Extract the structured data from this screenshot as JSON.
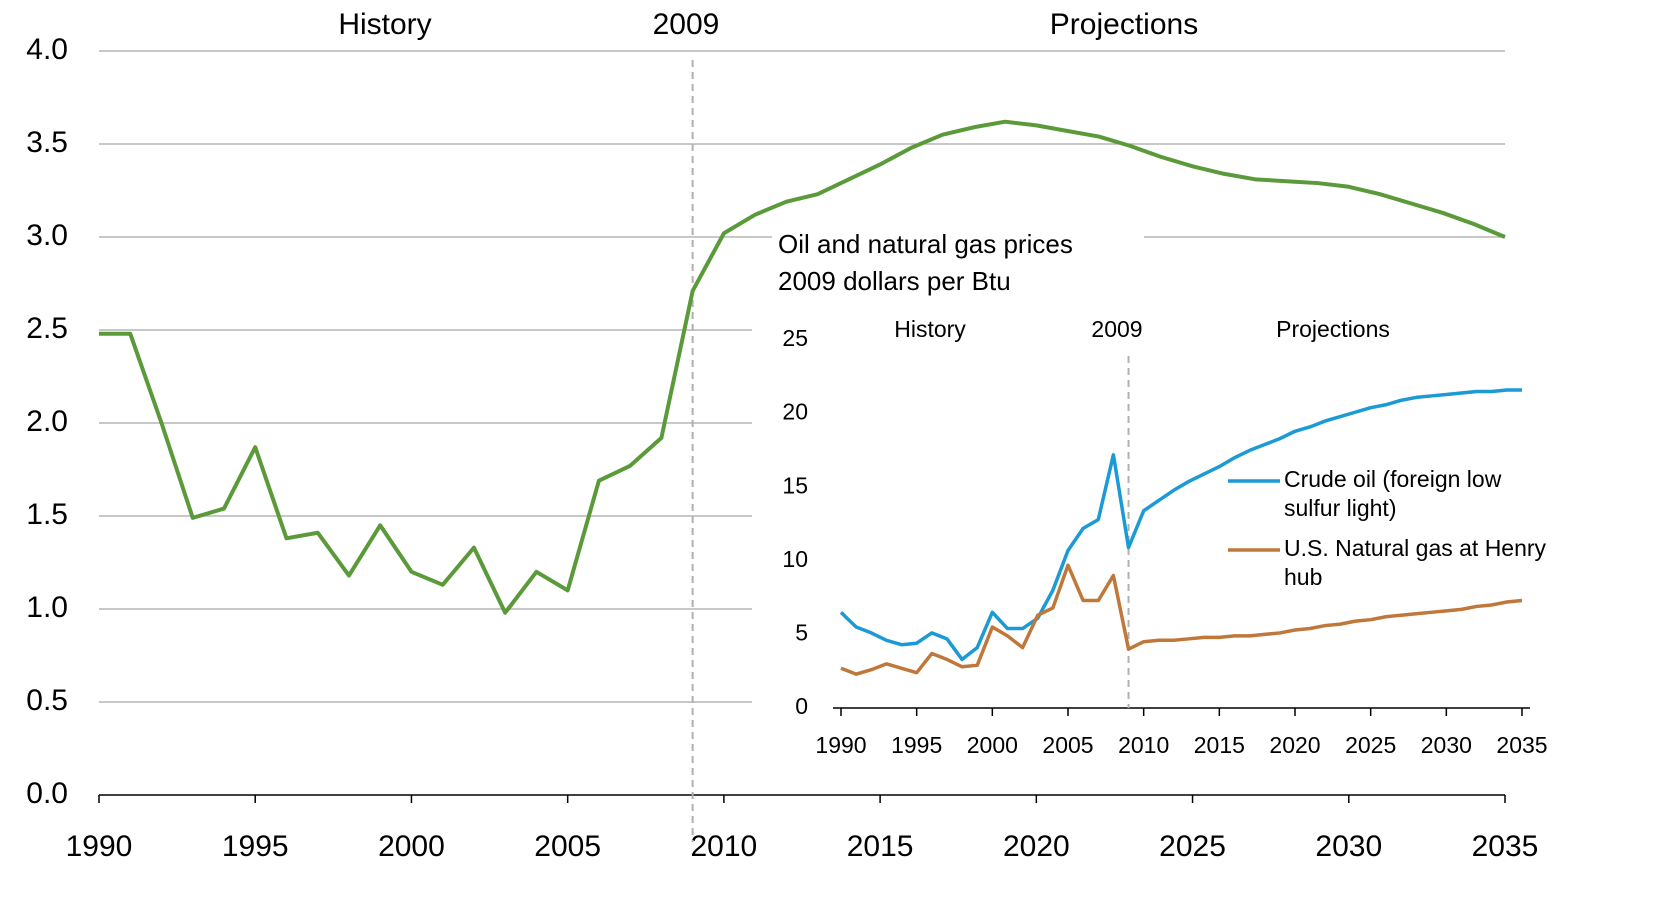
{
  "chart_data": [
    {
      "type": "line",
      "annotations": [
        "History",
        "2009",
        "Projections"
      ],
      "divider": {
        "value": 2009,
        "label": "2009"
      },
      "xlim": [
        1990,
        2035
      ],
      "xticks": [
        1990,
        1995,
        2000,
        2005,
        2010,
        2015,
        2020,
        2025,
        2030,
        2035
      ],
      "ylim": [
        0,
        4
      ],
      "yticks": [
        {
          "value": 0,
          "label": "0.0"
        },
        0.5,
        {
          "value": 1,
          "label": "1.0"
        },
        1.5,
        {
          "value": 2,
          "label": "2.0"
        },
        2.5,
        {
          "value": 3,
          "label": "3.0"
        },
        3.5,
        {
          "value": 4,
          "label": "4.0"
        }
      ],
      "grid": true,
      "x": [
        1990,
        1991,
        1992,
        1993,
        1994,
        1995,
        1996,
        1997,
        1998,
        1999,
        2000,
        2001,
        2002,
        2003,
        2004,
        2005,
        2006,
        2007,
        2008,
        2009,
        2010,
        2011,
        2012,
        2013,
        2014,
        2015,
        2016,
        2017,
        2018,
        2019,
        2020,
        2021,
        2022,
        2023,
        2024,
        2025,
        2026,
        2027,
        2028,
        2029,
        2030,
        2031,
        2032,
        2033,
        2034,
        2035
      ],
      "series": [
        {
          "color": "#5b9a3a",
          "values": [
            2.48,
            2.48,
            2.0,
            1.49,
            1.54,
            1.87,
            1.38,
            1.41,
            1.18,
            1.45,
            1.2,
            1.13,
            1.33,
            0.98,
            1.2,
            1.1,
            1.69,
            1.77,
            1.92,
            2.71,
            3.02,
            3.12,
            3.19,
            3.23,
            3.31,
            3.39,
            3.48,
            3.55,
            3.59,
            3.62,
            3.6,
            3.57,
            3.54,
            3.49,
            3.43,
            3.38,
            3.34,
            3.31,
            3.3,
            3.29,
            3.27,
            3.23,
            3.18,
            3.13,
            3.07,
            3.0
          ]
        }
      ]
    },
    {
      "type": "line",
      "title": "Oil and natural gas prices",
      "subtitle": "2009 dollars per Btu",
      "annotations": [
        "History",
        "2009",
        "Projections"
      ],
      "divider": {
        "value": 2009,
        "label": "2009"
      },
      "xlim": [
        1990,
        2035
      ],
      "xticks": [
        1990,
        1995,
        2000,
        2005,
        2010,
        2015,
        2020,
        2025,
        2030,
        2035
      ],
      "ylim": [
        0,
        25
      ],
      "yticks": [
        0,
        5,
        10,
        15,
        20,
        25
      ],
      "grid": false,
      "x": [
        1990,
        1991,
        1992,
        1993,
        1994,
        1995,
        1996,
        1997,
        1998,
        1999,
        2000,
        2001,
        2002,
        2003,
        2004,
        2005,
        2006,
        2007,
        2008,
        2009,
        2010,
        2011,
        2012,
        2013,
        2014,
        2015,
        2016,
        2017,
        2018,
        2019,
        2020,
        2021,
        2022,
        2023,
        2024,
        2025,
        2026,
        2027,
        2028,
        2029,
        2030,
        2031,
        2032,
        2033,
        2034,
        2035
      ],
      "series": [
        {
          "name": "Crude oil (foreign low sulfur light)",
          "color": "#1b9ad6",
          "values": [
            6.5,
            5.5,
            5.1,
            4.6,
            4.3,
            4.4,
            5.1,
            4.7,
            3.3,
            4.1,
            6.5,
            5.4,
            5.4,
            6.1,
            8.0,
            10.7,
            12.2,
            12.8,
            17.2,
            10.9,
            13.4,
            14.1,
            14.8,
            15.4,
            15.9,
            16.4,
            17.0,
            17.5,
            17.9,
            18.3,
            18.8,
            19.1,
            19.5,
            19.8,
            20.1,
            20.4,
            20.6,
            20.9,
            21.1,
            21.2,
            21.3,
            21.4,
            21.5,
            21.5,
            21.6,
            21.6
          ]
        },
        {
          "name": "U.S. Natural gas at Henry hub",
          "color": "#c0783a",
          "values": [
            2.7,
            2.3,
            2.6,
            3.0,
            2.7,
            2.4,
            3.7,
            3.3,
            2.8,
            2.9,
            5.5,
            4.9,
            4.1,
            6.3,
            6.8,
            9.7,
            7.3,
            7.3,
            9.0,
            4.0,
            4.5,
            4.6,
            4.6,
            4.7,
            4.8,
            4.8,
            4.9,
            4.9,
            5.0,
            5.1,
            5.3,
            5.4,
            5.6,
            5.7,
            5.9,
            6.0,
            6.2,
            6.3,
            6.4,
            6.5,
            6.6,
            6.7,
            6.9,
            7.0,
            7.2,
            7.3
          ]
        }
      ]
    }
  ]
}
